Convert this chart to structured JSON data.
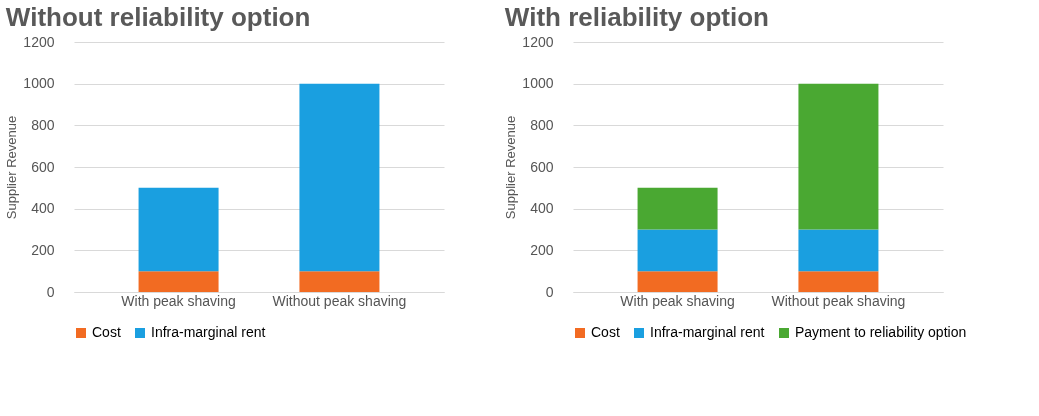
{
  "chart_data": [
    {
      "type": "bar",
      "title": "Without reliability option",
      "ylabel": "Supplier Revenue",
      "stacked": true,
      "categories": [
        "With peak shaving",
        "Without peak shaving"
      ],
      "series": [
        {
          "name": "Cost",
          "color": "#f26b22",
          "values": [
            100,
            100
          ]
        },
        {
          "name": "Infra-marginal rent",
          "color": "#1a9fe0",
          "values": [
            400,
            900
          ]
        }
      ],
      "ylim": [
        0,
        1200
      ],
      "yticks": [
        0,
        200,
        400,
        600,
        800,
        1000,
        1200
      ],
      "grid": "y",
      "legend": "bottom"
    },
    {
      "type": "bar",
      "title": "With reliability option",
      "ylabel": "Supplier Revenue",
      "stacked": true,
      "categories": [
        "With peak shaving",
        "Without peak shaving"
      ],
      "series": [
        {
          "name": "Cost",
          "color": "#f26b22",
          "values": [
            100,
            100
          ]
        },
        {
          "name": "Infra-marginal rent",
          "color": "#1a9fe0",
          "values": [
            200,
            200
          ]
        },
        {
          "name": "Payment to reliability option",
          "color": "#4aa832",
          "values": [
            200,
            700
          ]
        }
      ],
      "ylim": [
        0,
        1200
      ],
      "yticks": [
        0,
        200,
        400,
        600,
        800,
        1000,
        1200
      ],
      "grid": "y",
      "legend": "bottom"
    }
  ]
}
